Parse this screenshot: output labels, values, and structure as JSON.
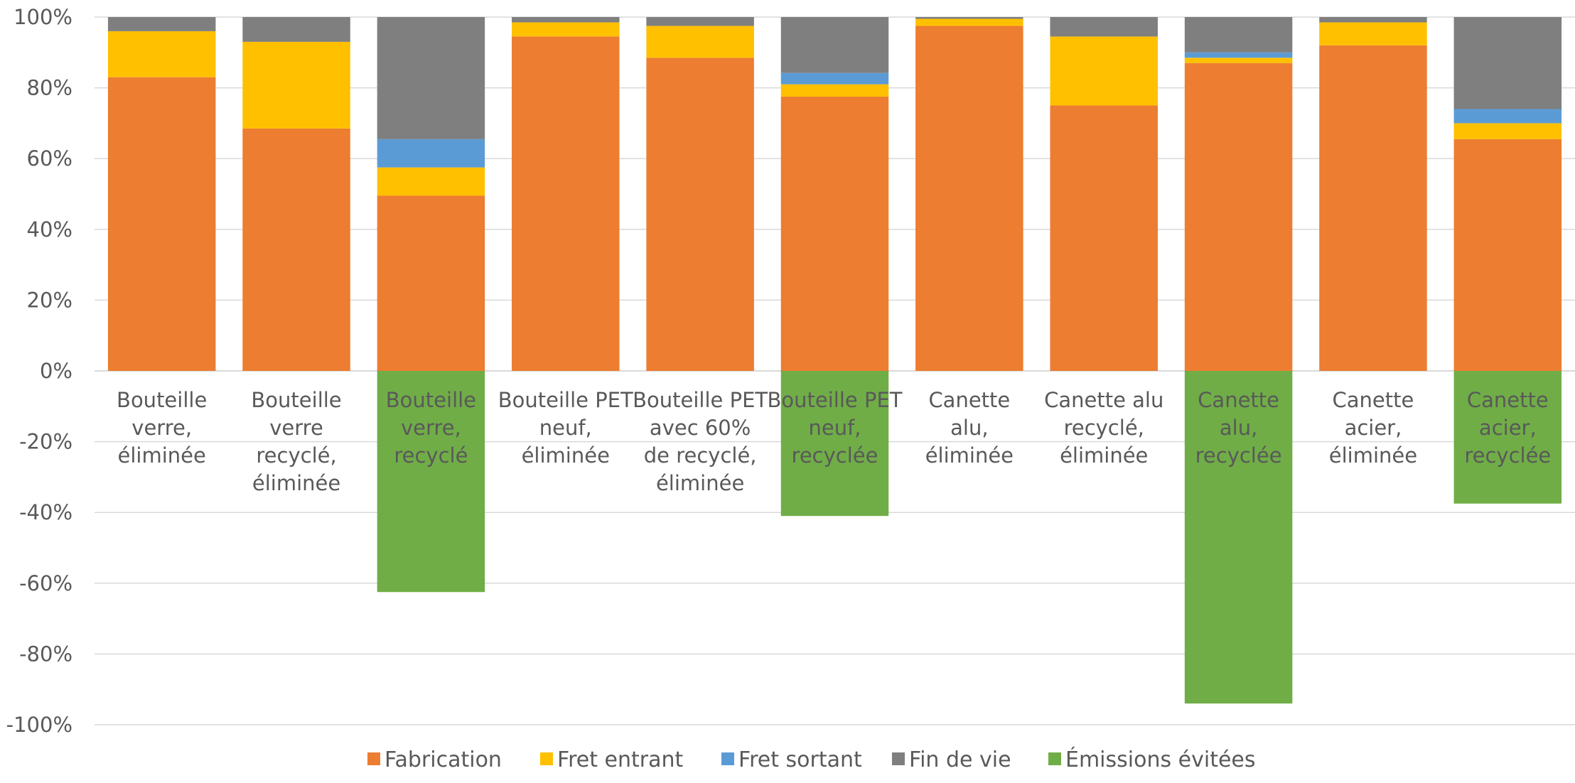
{
  "chart_data": {
    "type": "bar",
    "stacked": true,
    "ylim": [
      -1.0,
      1.0
    ],
    "y_ticks": [
      "100%",
      "80%",
      "60%",
      "40%",
      "20%",
      "0%",
      "-20%",
      "-40%",
      "-60%",
      "-80%",
      "-100%"
    ],
    "y_tick_values": [
      1.0,
      0.8,
      0.6,
      0.4,
      0.2,
      0.0,
      -0.2,
      -0.4,
      -0.6,
      -0.8,
      -1.0
    ],
    "grid": true,
    "legend_position": "bottom",
    "categories": [
      [
        "Bouteille",
        "verre,",
        "éliminée"
      ],
      [
        "Bouteille",
        "verre",
        "recyclé,",
        "éliminée"
      ],
      [
        "Bouteille",
        "verre,",
        "recyclé"
      ],
      [
        "Bouteille PET",
        "neuf,",
        "éliminée"
      ],
      [
        "Bouteille PET",
        "avec 60%",
        "de recyclé,",
        "éliminée"
      ],
      [
        "Bouteille PET",
        "neuf,",
        "recyclée"
      ],
      [
        "Canette",
        "alu,",
        "éliminée"
      ],
      [
        "Canette alu",
        "recyclé,",
        "éliminée"
      ],
      [
        "Canette",
        "alu,",
        "recyclée"
      ],
      [
        "Canette",
        "acier,",
        "éliminée"
      ],
      [
        "Canette",
        "acier,",
        "recyclée"
      ]
    ],
    "series": [
      {
        "name": "Fabrication",
        "color": "#ED7D31",
        "values": [
          0.83,
          0.685,
          0.495,
          0.945,
          0.885,
          0.775,
          0.975,
          0.75,
          0.87,
          0.92,
          0.655
        ]
      },
      {
        "name": "Fret entrant",
        "color": "#FFC000",
        "values": [
          0.13,
          0.245,
          0.08,
          0.04,
          0.09,
          0.035,
          0.02,
          0.195,
          0.015,
          0.065,
          0.045
        ]
      },
      {
        "name": "Fret sortant",
        "color": "#5B9BD5",
        "values": [
          0.0,
          0.0,
          0.08,
          0.0,
          0.0,
          0.032,
          0.0,
          0.0,
          0.015,
          0.0,
          0.04
        ]
      },
      {
        "name": "Fin de vie",
        "color": "#7F7F7F",
        "values": [
          0.04,
          0.07,
          0.345,
          0.015,
          0.025,
          0.158,
          0.005,
          0.055,
          0.1,
          0.015,
          0.26
        ]
      },
      {
        "name": "Émissions évitées",
        "color": "#70AD47",
        "values": [
          0.0,
          0.0,
          -0.625,
          0.0,
          0.0,
          -0.41,
          0.0,
          0.0,
          -0.94,
          0.0,
          -0.375
        ]
      }
    ],
    "axis_color": "#D9D9D9",
    "text_color": "#595959"
  }
}
